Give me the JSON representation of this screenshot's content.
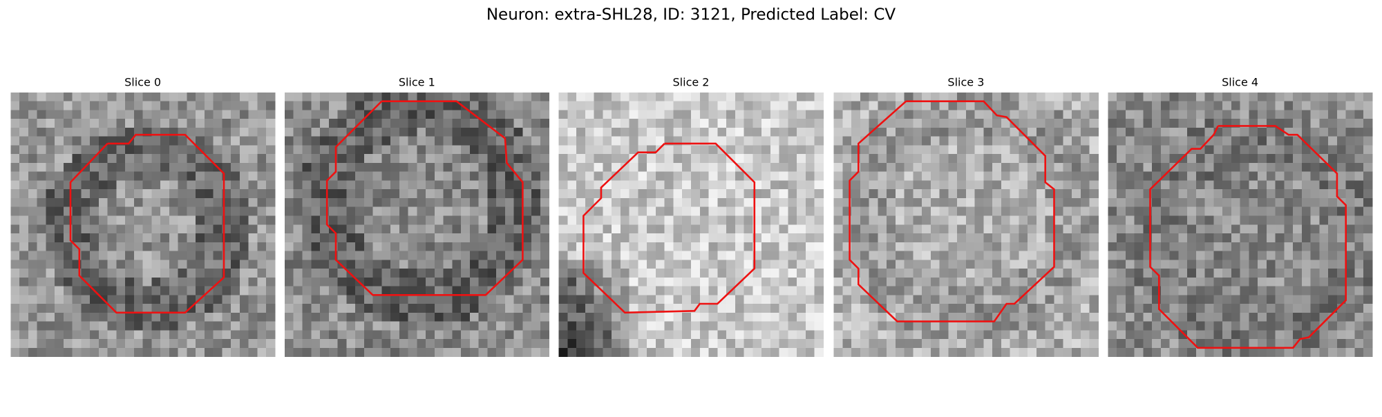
{
  "title": "Neuron: extra-SHL28, ID: 3121, Predicted Label: CV",
  "panels": [
    {
      "title": "Slice 0"
    },
    {
      "title": "Slice 1"
    },
    {
      "title": "Slice 2"
    },
    {
      "title": "Slice 3"
    },
    {
      "title": "Slice 4"
    }
  ]
}
